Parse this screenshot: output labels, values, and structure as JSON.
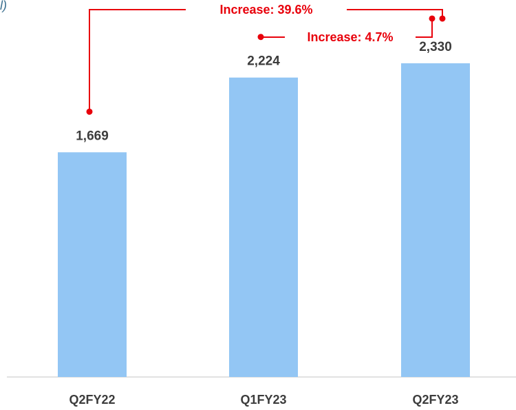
{
  "title_fragment": "l)",
  "chart_data": {
    "type": "bar",
    "categories": [
      "Q2FY22",
      "Q1FY23",
      "Q2FY23"
    ],
    "values": [
      1669,
      2224,
      2330
    ],
    "data_labels": [
      "1,669",
      "2,224",
      "2,330"
    ],
    "ylim": [
      0,
      2800
    ],
    "grid": false,
    "legend": "none",
    "bar_color": "#93c6f4",
    "annotations": [
      {
        "text": "Increase: 39.6%",
        "from": "Q2FY22",
        "to": "Q2FY23"
      },
      {
        "text": "Increase: 4.7%",
        "from": "Q1FY23",
        "to": "Q2FY23"
      }
    ],
    "annotation_color": "#e8000b",
    "label_color": "#3c3c3c"
  }
}
